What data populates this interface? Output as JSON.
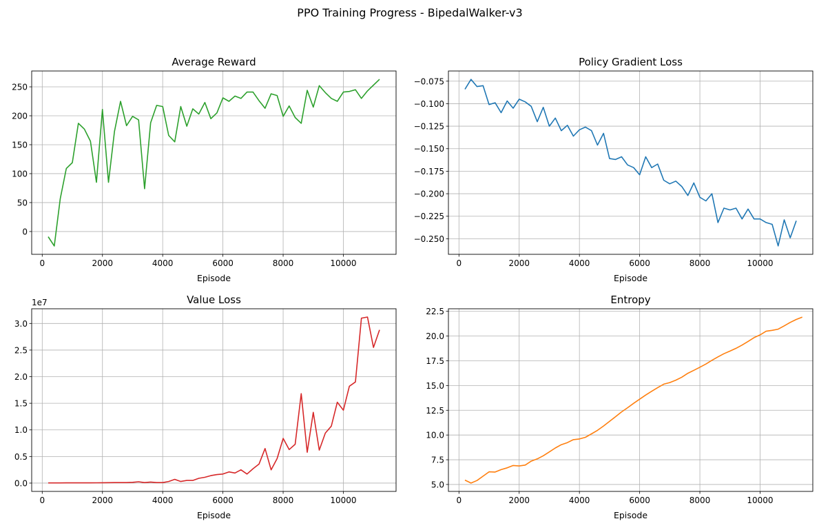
{
  "figure_title": "PPO Training Progress - BipedalWalker-v3",
  "chart_data": [
    {
      "type": "line",
      "title": "Average Reward",
      "xlabel": "Episode",
      "ylabel": "",
      "color": "#2ca02c",
      "grid": true,
      "xlim": [
        -350,
        11750
      ],
      "ylim": [
        -39.4,
        277.4
      ],
      "xticks": [
        0,
        2000,
        4000,
        6000,
        8000,
        10000
      ],
      "xtick_labels": [
        "0",
        "2000",
        "4000",
        "6000",
        "8000",
        "10000"
      ],
      "yticks": [
        0,
        50,
        100,
        150,
        200,
        250
      ],
      "ytick_labels": [
        "0",
        "50",
        "100",
        "150",
        "200",
        "250"
      ],
      "offset_text": "",
      "x_start": 200,
      "x_step": 200,
      "values": [
        -9,
        -25,
        57,
        109,
        119,
        187,
        177,
        156,
        85,
        211,
        85,
        173,
        225,
        183,
        199,
        193,
        74,
        188,
        218,
        216,
        166,
        155,
        216,
        182,
        212,
        203,
        223,
        195,
        205,
        231,
        225,
        234,
        230,
        241,
        241,
        226,
        213,
        238,
        235,
        199,
        217,
        197,
        187,
        244,
        215,
        252,
        240,
        230,
        225,
        241,
        242,
        245,
        230,
        243,
        253,
        263
      ]
    },
    {
      "type": "line",
      "title": "Policy Gradient Loss",
      "xlabel": "Episode",
      "ylabel": "",
      "color": "#1f77b4",
      "grid": true,
      "xlim": [
        -350,
        11750
      ],
      "ylim": [
        -0.2673,
        -0.0637
      ],
      "xticks": [
        0,
        2000,
        4000,
        6000,
        8000,
        10000
      ],
      "xtick_labels": [
        "0",
        "2000",
        "4000",
        "6000",
        "8000",
        "10000"
      ],
      "yticks": [
        -0.25,
        -0.225,
        -0.2,
        -0.175,
        -0.15,
        -0.125,
        -0.1,
        -0.075
      ],
      "ytick_labels": [
        "−0.250",
        "−0.225",
        "−0.200",
        "−0.175",
        "−0.150",
        "−0.125",
        "−0.100",
        "−0.075"
      ],
      "offset_text": "",
      "x_start": 200,
      "x_step": 200,
      "values": [
        -0.084,
        -0.073,
        -0.081,
        -0.08,
        -0.101,
        -0.099,
        -0.11,
        -0.097,
        -0.105,
        -0.095,
        -0.098,
        -0.103,
        -0.12,
        -0.104,
        -0.125,
        -0.116,
        -0.13,
        -0.124,
        -0.136,
        -0.129,
        -0.126,
        -0.13,
        -0.146,
        -0.133,
        -0.161,
        -0.162,
        -0.159,
        -0.168,
        -0.171,
        -0.179,
        -0.159,
        -0.171,
        -0.167,
        -0.185,
        -0.189,
        -0.186,
        -0.192,
        -0.202,
        -0.188,
        -0.204,
        -0.208,
        -0.2,
        -0.232,
        -0.216,
        -0.218,
        -0.216,
        -0.228,
        -0.217,
        -0.228,
        -0.228,
        -0.232,
        -0.234,
        -0.258,
        -0.229,
        -0.249,
        -0.23
      ]
    },
    {
      "type": "line",
      "title": "Value Loss",
      "xlabel": "Episode",
      "ylabel": "",
      "color": "#d62728",
      "grid": true,
      "xlim": [
        -350,
        11750
      ],
      "ylim": [
        -0.156,
        3.276
      ],
      "xticks": [
        0,
        2000,
        4000,
        6000,
        8000,
        10000
      ],
      "xtick_labels": [
        "0",
        "2000",
        "4000",
        "6000",
        "8000",
        "10000"
      ],
      "yticks": [
        0,
        0.5,
        1.0,
        1.5,
        2.0,
        2.5,
        3.0
      ],
      "ytick_labels": [
        "0.0",
        "0.5",
        "1.0",
        "1.5",
        "2.0",
        "2.5",
        "3.0"
      ],
      "offset_text": "1e7",
      "x_start": 200,
      "x_step": 200,
      "values": [
        0.003,
        0.003,
        0.003,
        0.004,
        0.004,
        0.004,
        0.005,
        0.005,
        0.006,
        0.007,
        0.008,
        0.01,
        0.01,
        0.01,
        0.015,
        0.025,
        0.01,
        0.02,
        0.01,
        0.01,
        0.03,
        0.07,
        0.03,
        0.05,
        0.05,
        0.09,
        0.11,
        0.14,
        0.16,
        0.17,
        0.21,
        0.19,
        0.25,
        0.17,
        0.27,
        0.36,
        0.65,
        0.25,
        0.46,
        0.84,
        0.63,
        0.73,
        1.68,
        0.58,
        1.33,
        0.62,
        0.94,
        1.07,
        1.52,
        1.37,
        1.82,
        1.9,
        3.1,
        3.12,
        2.55,
        2.88
      ]
    },
    {
      "type": "line",
      "title": "Entropy",
      "xlabel": "Episode",
      "ylabel": "",
      "color": "#ff7f0e",
      "grid": true,
      "xlim": [
        -350,
        11750
      ],
      "ylim": [
        4.3,
        22.76
      ],
      "xticks": [
        0,
        2000,
        4000,
        6000,
        8000,
        10000
      ],
      "xtick_labels": [
        "0",
        "2000",
        "4000",
        "6000",
        "8000",
        "10000"
      ],
      "yticks": [
        5,
        7.5,
        10,
        12.5,
        15,
        17.5,
        20,
        22.5
      ],
      "ytick_labels": [
        "5.0",
        "7.5",
        "10.0",
        "12.5",
        "15.0",
        "17.5",
        "20.0",
        "22.5"
      ],
      "offset_text": "",
      "x_start": 200,
      "x_step": 200,
      "values": [
        5.44,
        5.14,
        5.4,
        5.84,
        6.28,
        6.26,
        6.5,
        6.68,
        6.92,
        6.87,
        6.96,
        7.36,
        7.59,
        7.9,
        8.29,
        8.69,
        9.02,
        9.23,
        9.53,
        9.6,
        9.77,
        10.12,
        10.47,
        10.91,
        11.38,
        11.85,
        12.34,
        12.76,
        13.2,
        13.62,
        14.04,
        14.42,
        14.79,
        15.14,
        15.3,
        15.54,
        15.84,
        16.24,
        16.54,
        16.85,
        17.17,
        17.55,
        17.9,
        18.22,
        18.48,
        18.76,
        19.09,
        19.46,
        19.84,
        20.12,
        20.49,
        20.58,
        20.7,
        21.03,
        21.38,
        21.68,
        21.92
      ]
    }
  ]
}
